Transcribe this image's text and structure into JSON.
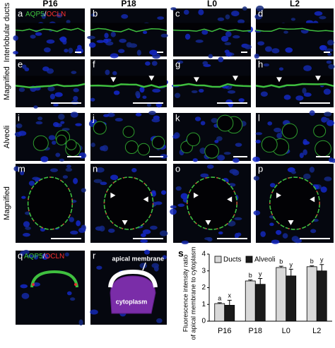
{
  "column_headers": [
    "P16",
    "P18",
    "L0",
    "L2"
  ],
  "row_labels": [
    "Interlobular ducts",
    "Magnified",
    "Alveoli",
    "Magnified"
  ],
  "panel_letters": [
    "a",
    "b",
    "c",
    "d",
    "e",
    "f",
    "g",
    "h",
    "i",
    "j",
    "k",
    "l",
    "m",
    "n",
    "o",
    "p",
    "q",
    "r"
  ],
  "stain": {
    "aqp5": "AQP5",
    "sep": "/",
    "ocln": "OCLN"
  },
  "panel_r": {
    "apical": "apical membrane",
    "cytoplasm": "cytoplasm"
  },
  "chart_letter": "s",
  "chart_data": {
    "type": "bar",
    "ylabel_lines": [
      "Fluorescence intensity ratio",
      "of apical membrane to cytoplasm"
    ],
    "categories": [
      "P16",
      "P18",
      "L0",
      "L2"
    ],
    "series": [
      {
        "name": "Ducts",
        "color": "#d9d9d9",
        "values": [
          1.05,
          2.4,
          3.2,
          3.25
        ],
        "errors": [
          0.05,
          0.06,
          0.08,
          0.05
        ],
        "significance": [
          "a",
          "b",
          "b",
          "b"
        ]
      },
      {
        "name": "Alveoli",
        "color": "#1a1a1a",
        "values": [
          0.95,
          2.2,
          2.7,
          3.0
        ],
        "errors": [
          0.3,
          0.35,
          0.4,
          0.38
        ],
        "significance": [
          "x",
          "y",
          "y",
          "y"
        ]
      }
    ],
    "ylim": [
      0,
      4
    ],
    "yticks": [
      0,
      1,
      2,
      3,
      4
    ]
  }
}
